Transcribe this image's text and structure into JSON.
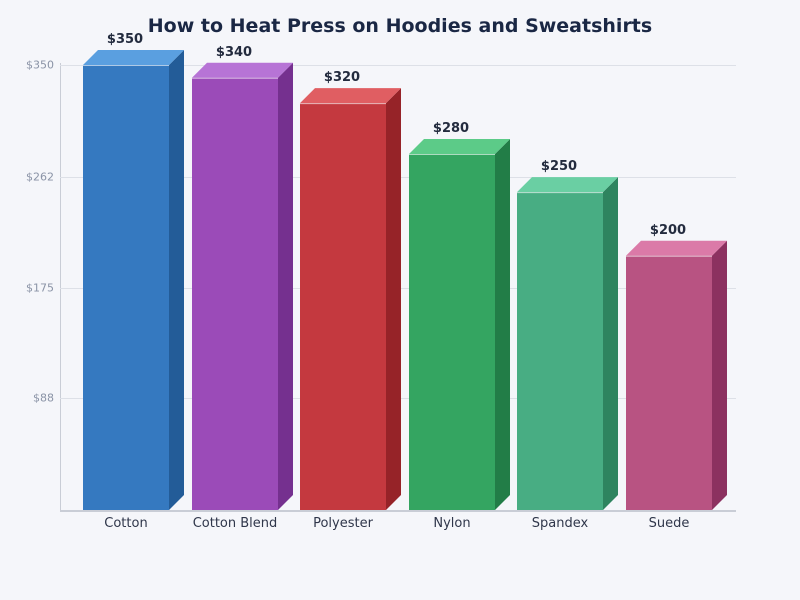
{
  "chart_data": {
    "type": "bar",
    "title": "How to Heat Press on Hoodies and Sweatshirts",
    "categories": [
      "Cotton",
      "Cotton Blend",
      "Polyester",
      "Nylon",
      "Spandex",
      "Suede"
    ],
    "values": [
      350,
      340,
      320,
      280,
      250,
      200
    ],
    "value_labels": [
      "$350",
      "$340",
      "$320",
      "$280",
      "$250",
      "$200"
    ],
    "xlabel": "",
    "ylabel": "",
    "ylim": [
      0,
      350
    ],
    "yticks": [
      88,
      175,
      262,
      350
    ],
    "ytick_labels": [
      "$88",
      "$175",
      "$262",
      "$350"
    ],
    "grid": true,
    "legend": "none",
    "style": "3d-bar",
    "colors": [
      {
        "front": "#3579c0",
        "top": "#5a9fe0",
        "side": "#235c98"
      },
      {
        "front": "#9b4bb8",
        "top": "#b774d6",
        "side": "#75308f"
      },
      {
        "front": "#c4393f",
        "top": "#e05e62",
        "side": "#962328"
      },
      {
        "front": "#34a561",
        "top": "#5ccb88",
        "side": "#227d47"
      },
      {
        "front": "#48ad83",
        "top": "#6acfa3",
        "side": "#2e845f"
      },
      {
        "front": "#b85382",
        "top": "#db7aa8",
        "side": "#8c3160"
      }
    ]
  }
}
